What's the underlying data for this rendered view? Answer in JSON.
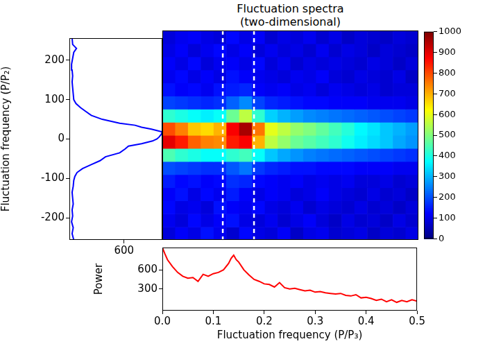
{
  "chart_data": [
    {
      "type": "heatmap",
      "title": [
        "Fluctuation spectra",
        "(two-dimensional)"
      ],
      "xlim": [
        0,
        0.5
      ],
      "ylim": [
        -256,
        256
      ],
      "tick_labels": false,
      "grid": false,
      "x_bins": [
        0,
        0.025,
        0.05,
        0.075,
        0.1,
        0.125,
        0.15,
        0.175,
        0.2,
        0.225,
        0.25,
        0.275,
        0.3,
        0.325,
        0.35,
        0.375,
        0.4,
        0.425,
        0.45,
        0.475,
        0.5
      ],
      "y_bins": [
        -256,
        -224,
        -192,
        -160,
        -128,
        -96,
        -64,
        -32,
        0,
        32,
        64,
        96,
        128,
        160,
        192,
        224,
        256
      ],
      "z": [
        [
          90,
          120,
          100,
          140,
          110,
          80,
          130,
          100,
          90,
          120,
          70,
          100,
          110,
          80,
          90,
          100,
          70,
          90,
          80,
          100
        ],
        [
          110,
          90,
          130,
          100,
          120,
          140,
          100,
          90,
          110,
          80,
          100,
          120,
          90,
          70,
          100,
          80,
          90,
          70,
          100,
          80
        ],
        [
          130,
          100,
          110,
          90,
          140,
          120,
          110,
          130,
          100,
          90,
          110,
          80,
          100,
          90,
          80,
          100,
          80,
          90,
          70,
          90
        ],
        [
          120,
          140,
          100,
          130,
          110,
          150,
          120,
          100,
          120,
          110,
          90,
          100,
          120,
          100,
          90,
          80,
          100,
          80,
          90,
          70
        ],
        [
          150,
          130,
          140,
          120,
          130,
          170,
          160,
          130,
          120,
          110,
          120,
          100,
          110,
          100,
          110,
          90,
          90,
          100,
          80,
          90
        ],
        [
          200,
          190,
          180,
          170,
          170,
          210,
          240,
          180,
          160,
          150,
          140,
          140,
          130,
          130,
          130,
          120,
          120,
          120,
          110,
          110
        ],
        [
          450,
          420,
          400,
          380,
          380,
          420,
          440,
          380,
          320,
          290,
          270,
          250,
          240,
          230,
          220,
          210,
          200,
          190,
          180,
          170
        ],
        [
          900,
          850,
          780,
          750,
          740,
          850,
          880,
          700,
          560,
          520,
          480,
          460,
          440,
          420,
          390,
          360,
          340,
          320,
          290,
          270
        ],
        [
          800,
          750,
          680,
          660,
          700,
          880,
          960,
          760,
          600,
          560,
          520,
          500,
          470,
          440,
          410,
          370,
          350,
          320,
          300,
          280
        ],
        [
          420,
          400,
          380,
          360,
          380,
          480,
          560,
          420,
          330,
          300,
          280,
          260,
          250,
          240,
          230,
          220,
          210,
          200,
          190,
          180
        ],
        [
          190,
          180,
          170,
          160,
          170,
          220,
          260,
          190,
          160,
          150,
          140,
          130,
          130,
          120,
          120,
          120,
          110,
          110,
          110,
          100
        ],
        [
          140,
          120,
          130,
          110,
          140,
          150,
          160,
          120,
          110,
          120,
          100,
          110,
          90,
          110,
          100,
          90,
          100,
          80,
          90,
          90
        ],
        [
          110,
          130,
          100,
          120,
          100,
          140,
          120,
          110,
          100,
          90,
          110,
          100,
          120,
          90,
          80,
          100,
          90,
          80,
          100,
          70
        ],
        [
          120,
          100,
          130,
          90,
          110,
          120,
          100,
          130,
          90,
          110,
          80,
          100,
          90,
          100,
          90,
          80,
          100,
          90,
          70,
          90
        ],
        [
          100,
          120,
          90,
          110,
          130,
          100,
          120,
          90,
          110,
          90,
          100,
          80,
          110,
          80,
          100,
          90,
          70,
          90,
          80,
          70
        ],
        [
          90,
          110,
          120,
          100,
          90,
          130,
          100,
          120,
          80,
          100,
          90,
          110,
          80,
          100,
          70,
          90,
          80,
          70,
          90,
          80
        ]
      ],
      "colorbar": {
        "range": [
          0,
          1000
        ],
        "ticks": [
          0,
          100,
          200,
          300,
          400,
          500,
          600,
          700,
          800,
          900,
          1000
        ]
      },
      "vlines": {
        "values": [
          0.118,
          0.179
        ],
        "color": "#ffffff",
        "line_style": "dashed"
      }
    },
    {
      "type": "line",
      "color": "#0000ff",
      "grid": false,
      "ylabel": "Fluctuation frequency (P/P₂)",
      "xlim": [
        100,
        950
      ],
      "xticks": [
        600
      ],
      "ylim": [
        -256,
        256
      ],
      "yticks": [
        -200,
        -100,
        0,
        100,
        200
      ],
      "y": [
        -256,
        -240,
        -225,
        -210,
        -195,
        -180,
        -165,
        -150,
        -135,
        -120,
        -105,
        -95,
        -85,
        -75,
        -65,
        -55,
        -45,
        -35,
        -25,
        -18,
        -12,
        -5,
        0,
        5,
        12,
        18,
        25,
        30,
        35,
        40,
        50,
        60,
        70,
        80,
        90,
        100,
        115,
        130,
        145,
        160,
        175,
        190,
        205,
        220,
        230,
        240,
        256
      ],
      "x": [
        140,
        125,
        135,
        120,
        130,
        125,
        135,
        130,
        125,
        135,
        140,
        150,
        170,
        220,
        300,
        380,
        430,
        560,
        610,
        640,
        760,
        860,
        900,
        920,
        940,
        950,
        850,
        760,
        700,
        560,
        400,
        300,
        250,
        200,
        160,
        140,
        135,
        130,
        125,
        130,
        125,
        120,
        130,
        140,
        165,
        130,
        125
      ]
    },
    {
      "type": "line",
      "color": "#ff0000",
      "grid": false,
      "xlabel": "Fluctuation frequency (P/P₃)",
      "ylabel": "Power",
      "xlim": [
        0,
        0.5
      ],
      "xticks": [
        {
          "value": 0,
          "label": "0.0"
        },
        0.1,
        0.2,
        0.3,
        0.4,
        0.5
      ],
      "ylim": [
        -40,
        950
      ],
      "yticks": [
        300,
        600
      ],
      "x": [
        0,
        0.005,
        0.01,
        0.02,
        0.03,
        0.04,
        0.05,
        0.06,
        0.07,
        0.08,
        0.09,
        0.1,
        0.11,
        0.12,
        0.13,
        0.135,
        0.14,
        0.145,
        0.15,
        0.16,
        0.17,
        0.18,
        0.19,
        0.2,
        0.21,
        0.22,
        0.23,
        0.24,
        0.25,
        0.26,
        0.27,
        0.28,
        0.29,
        0.3,
        0.31,
        0.32,
        0.33,
        0.34,
        0.35,
        0.36,
        0.37,
        0.38,
        0.39,
        0.4,
        0.41,
        0.42,
        0.43,
        0.44,
        0.45,
        0.46,
        0.47,
        0.48,
        0.49,
        0.5
      ],
      "values": [
        950,
        850,
        760,
        650,
        560,
        500,
        470,
        480,
        420,
        530,
        500,
        540,
        560,
        600,
        700,
        780,
        830,
        760,
        720,
        600,
        520,
        450,
        420,
        380,
        370,
        330,
        400,
        320,
        300,
        310,
        290,
        270,
        280,
        250,
        260,
        240,
        230,
        220,
        230,
        200,
        190,
        210,
        160,
        170,
        150,
        120,
        140,
        100,
        130,
        90,
        120,
        100,
        130,
        110
      ]
    }
  ]
}
